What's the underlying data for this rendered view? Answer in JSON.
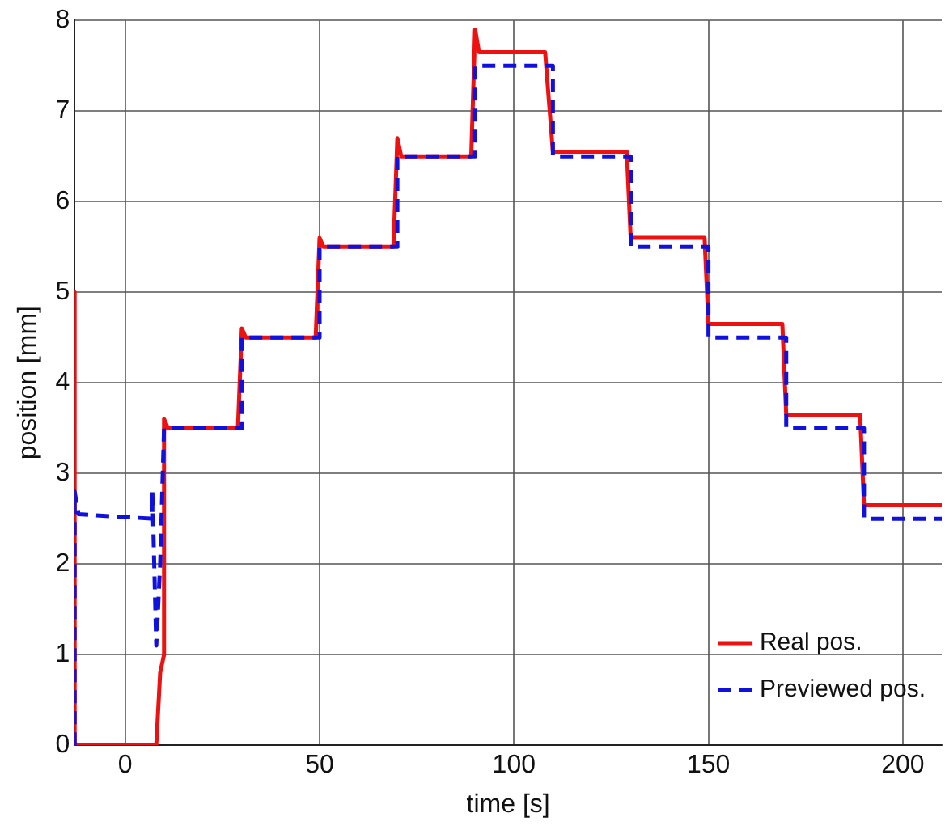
{
  "chart_data": {
    "type": "line",
    "xlabel": "time [s]",
    "ylabel": "position [mm]",
    "xlim": [
      -13,
      210
    ],
    "ylim": [
      0,
      8
    ],
    "xticks": [
      0,
      50,
      100,
      150,
      200
    ],
    "yticks": [
      0,
      1,
      2,
      3,
      4,
      5,
      6,
      7,
      8
    ],
    "grid": true,
    "legend": "bottom right",
    "marker": "none",
    "series": [
      {
        "name": "Real pos.",
        "color": "#ee1111",
        "line_style": "solid",
        "x": [
          -13,
          -13,
          8,
          9,
          10,
          10,
          11,
          29,
          30,
          31,
          49,
          50,
          51,
          69,
          70,
          71,
          89,
          90,
          91,
          108,
          110,
          129,
          130,
          149,
          150,
          169,
          170,
          189,
          190,
          210
        ],
        "values": [
          5,
          0,
          0,
          0.8,
          1,
          3.6,
          3.5,
          3.5,
          4.6,
          4.5,
          4.5,
          5.6,
          5.5,
          5.5,
          6.7,
          6.5,
          6.5,
          7.9,
          7.65,
          7.65,
          6.55,
          6.55,
          5.6,
          5.6,
          4.65,
          4.65,
          3.65,
          3.65,
          2.65,
          2.65
        ]
      },
      {
        "name": "Previewed pos.",
        "color": "#1111dd",
        "line_style": "dashed",
        "x": [
          -13,
          -13,
          -12,
          7,
          7,
          8,
          9,
          10,
          30,
          30,
          50,
          50,
          70,
          70,
          90,
          90,
          110,
          110,
          130,
          130,
          150,
          150,
          170,
          170,
          190,
          190,
          210
        ],
        "values": [
          0,
          2.8,
          2.55,
          2.5,
          2.8,
          1.1,
          2,
          3.5,
          3.5,
          4.5,
          4.5,
          5.5,
          5.5,
          6.5,
          6.5,
          7.5,
          7.5,
          6.5,
          6.5,
          5.5,
          5.5,
          4.5,
          4.5,
          3.5,
          3.5,
          2.5,
          2.5
        ]
      }
    ]
  }
}
